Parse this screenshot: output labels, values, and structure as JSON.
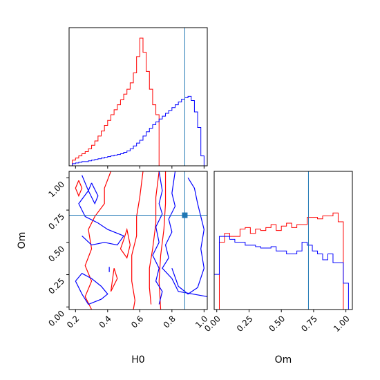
{
  "chart_data": {
    "type": "corner",
    "parameters": [
      "H0",
      "Om"
    ],
    "xlabels": [
      "H0",
      "Om"
    ],
    "ylabel": "Om",
    "h0_range": [
      0.16,
      1.02
    ],
    "om_range": [
      -0.02,
      1.05
    ],
    "h0_ticks": [
      "0.2",
      "0.4",
      "0.6",
      "0.8",
      "1.0"
    ],
    "om_ticks": [
      "0.00",
      "0.25",
      "0.50",
      "0.75",
      "1.00"
    ],
    "truth": {
      "H0": 0.88,
      "Om": 0.71,
      "color": "#1f77b4"
    },
    "h0_hist": {
      "bin_edges": [
        0.18,
        0.2,
        0.22,
        0.24,
        0.26,
        0.28,
        0.3,
        0.32,
        0.34,
        0.36,
        0.38,
        0.4,
        0.42,
        0.44,
        0.46,
        0.48,
        0.5,
        0.52,
        0.54,
        0.56,
        0.58,
        0.6,
        0.62,
        0.64,
        0.66,
        0.68,
        0.7,
        0.72,
        0.74,
        0.76,
        0.78,
        0.8,
        0.82,
        0.84,
        0.86,
        0.88,
        0.9,
        0.92,
        0.94,
        0.96,
        0.98,
        1.0
      ],
      "series": [
        {
          "color": "#ff0000",
          "counts": [
            8,
            11,
            14,
            17,
            20,
            24,
            29,
            35,
            42,
            49,
            57,
            64,
            72,
            79,
            86,
            93,
            101,
            108,
            117,
            131,
            154,
            180,
            160,
            133,
            108,
            86,
            72,
            0,
            0,
            0,
            0,
            0,
            0,
            0,
            0,
            0,
            0,
            0,
            0,
            0,
            0
          ]
        },
        {
          "color": "#0000ff",
          "counts": [
            3,
            4,
            5,
            6,
            6,
            7,
            8,
            9,
            10,
            11,
            12,
            13,
            14,
            15,
            16,
            17,
            19,
            21,
            24,
            28,
            32,
            36,
            42,
            48,
            53,
            58,
            62,
            66,
            70,
            74,
            78,
            82,
            86,
            90,
            94,
            96,
            98,
            92,
            76,
            54,
            14
          ]
        }
      ]
    },
    "om_hist": {
      "bin_edges": [
        -0.02,
        0.02,
        0.06,
        0.1,
        0.14,
        0.18,
        0.22,
        0.26,
        0.3,
        0.34,
        0.38,
        0.42,
        0.46,
        0.5,
        0.54,
        0.58,
        0.62,
        0.66,
        0.7,
        0.74,
        0.78,
        0.82,
        0.86,
        0.9,
        0.94,
        0.98,
        1.02
      ],
      "series": [
        {
          "color": "#ff0000",
          "counts": [
            0,
            46,
            52,
            50,
            50,
            55,
            56,
            52,
            55,
            54,
            56,
            58,
            54,
            57,
            59,
            56,
            58,
            58,
            63,
            63,
            62,
            64,
            64,
            66,
            60,
            0
          ]
        },
        {
          "color": "#0000ff",
          "counts": [
            24,
            50,
            50,
            48,
            46,
            46,
            44,
            44,
            43,
            42,
            42,
            43,
            40,
            40,
            38,
            38,
            40,
            46,
            44,
            40,
            38,
            34,
            38,
            32,
            32,
            18
          ]
        }
      ]
    },
    "scatter_2d": {
      "series": [
        {
          "color": "#ff0000"
        },
        {
          "color": "#0000ff"
        }
      ]
    }
  }
}
